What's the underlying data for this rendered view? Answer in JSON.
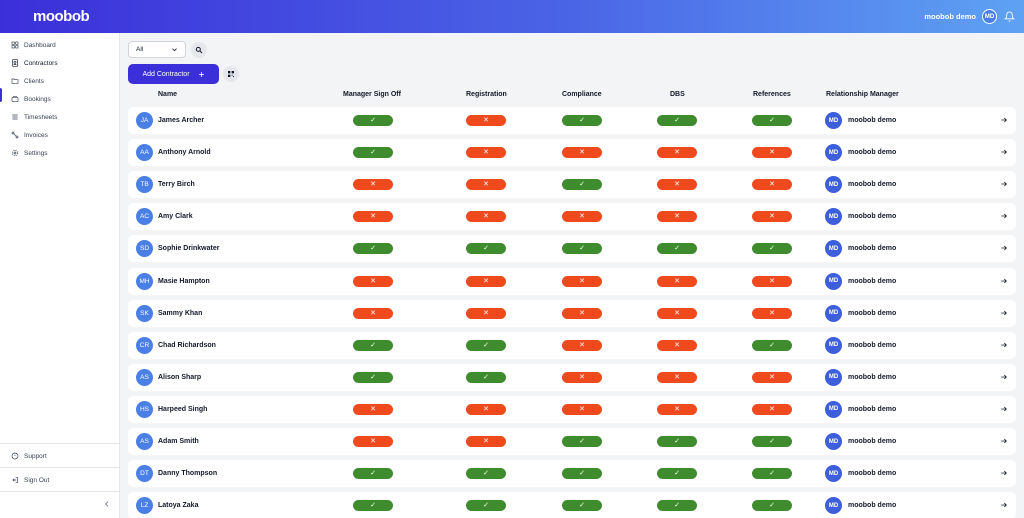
{
  "app": {
    "logo": "moobob"
  },
  "header": {
    "user_name": "moobob demo",
    "user_initials": "MD"
  },
  "sidebar": {
    "items": [
      {
        "label": "Dashboard",
        "icon": "grid-icon"
      },
      {
        "label": "Contractors",
        "icon": "id-card-icon",
        "active": true
      },
      {
        "label": "Clients",
        "icon": "folder-icon"
      },
      {
        "label": "Bookings",
        "icon": "briefcase-icon"
      },
      {
        "label": "Timesheets",
        "icon": "list-icon"
      },
      {
        "label": "Invoices",
        "icon": "link-icon"
      },
      {
        "label": "Settings",
        "icon": "gear-icon"
      }
    ],
    "support_label": "Support",
    "signout_label": "Sign Out"
  },
  "toolbar": {
    "filter_value": "All",
    "add_label": "Add Contractor"
  },
  "table": {
    "columns": [
      "Name",
      "Manager Sign Off",
      "Registration",
      "Compliance",
      "DBS",
      "References",
      "Relationship Manager"
    ],
    "ok_glyph": "✓",
    "no_glyph": "✕",
    "rows": [
      {
        "initials": "JA",
        "name": "James Archer",
        "status": [
          true,
          false,
          true,
          true,
          true
        ],
        "manager": "moobob demo",
        "manager_initials": "MD"
      },
      {
        "initials": "AA",
        "name": "Anthony Arnold",
        "status": [
          true,
          false,
          false,
          false,
          false
        ],
        "manager": "moobob demo",
        "manager_initials": "MD"
      },
      {
        "initials": "TB",
        "name": "Terry Birch",
        "status": [
          false,
          false,
          true,
          false,
          false
        ],
        "manager": "moobob demo",
        "manager_initials": "MD"
      },
      {
        "initials": "AC",
        "name": "Amy Clark",
        "status": [
          false,
          false,
          false,
          false,
          false
        ],
        "manager": "moobob demo",
        "manager_initials": "MD"
      },
      {
        "initials": "SD",
        "name": "Sophie Drinkwater",
        "status": [
          true,
          true,
          true,
          true,
          true
        ],
        "manager": "moobob demo",
        "manager_initials": "MD"
      },
      {
        "initials": "MH",
        "name": "Masie Hampton",
        "status": [
          false,
          false,
          false,
          false,
          false
        ],
        "manager": "moobob demo",
        "manager_initials": "MD"
      },
      {
        "initials": "SK",
        "name": "Sammy Khan",
        "status": [
          false,
          false,
          false,
          false,
          false
        ],
        "manager": "moobob demo",
        "manager_initials": "MD"
      },
      {
        "initials": "CR",
        "name": "Chad Richardson",
        "status": [
          true,
          true,
          false,
          false,
          true
        ],
        "manager": "moobob demo",
        "manager_initials": "MD"
      },
      {
        "initials": "AS",
        "name": "Alison Sharp",
        "status": [
          true,
          true,
          false,
          false,
          false
        ],
        "manager": "moobob demo",
        "manager_initials": "MD"
      },
      {
        "initials": "HS",
        "name": "Harpeed Singh",
        "status": [
          false,
          false,
          false,
          false,
          false
        ],
        "manager": "moobob demo",
        "manager_initials": "MD"
      },
      {
        "initials": "AS",
        "name": "Adam Smith",
        "status": [
          false,
          false,
          true,
          true,
          true
        ],
        "manager": "moobob demo",
        "manager_initials": "MD"
      },
      {
        "initials": "DT",
        "name": "Danny Thompson",
        "status": [
          true,
          true,
          true,
          true,
          true
        ],
        "manager": "moobob demo",
        "manager_initials": "MD"
      },
      {
        "initials": "LZ",
        "name": "Latoya Zaka",
        "status": [
          true,
          true,
          true,
          true,
          true
        ],
        "manager": "moobob demo",
        "manager_initials": "MD"
      }
    ]
  },
  "colors": {
    "primary": "#3b2fd9",
    "ok": "#3f8c2e",
    "no": "#ee4a1e",
    "avatar": "#4a7fe6"
  }
}
